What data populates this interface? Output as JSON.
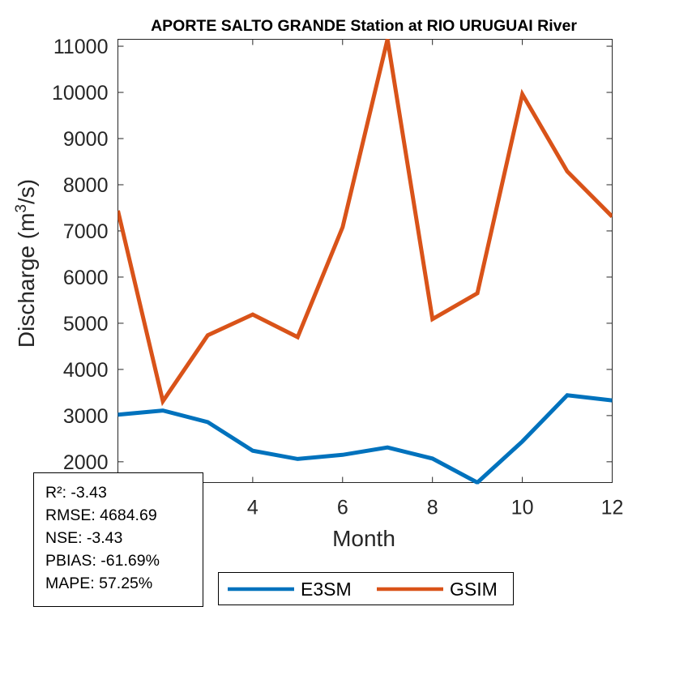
{
  "chart_data": {
    "type": "line",
    "title": "APORTE SALTO GRANDE  Station at  RIO URUGUAI  River",
    "xlabel": "Month",
    "ylabel_main": "Discharge (m",
    "ylabel_sup": "3",
    "ylabel_tail": "/s)",
    "x": [
      1,
      2,
      3,
      4,
      5,
      6,
      7,
      8,
      9,
      10,
      11,
      12
    ],
    "xlim": [
      1,
      12
    ],
    "ylim": [
      1550,
      11150
    ],
    "xticks": [
      4,
      6,
      8,
      10,
      12
    ],
    "yticks": [
      2000,
      3000,
      4000,
      5000,
      6000,
      7000,
      8000,
      9000,
      10000,
      11000
    ],
    "grid": false,
    "legend_position": "bottom",
    "series": [
      {
        "name": "E3SM",
        "color": "#0072BD",
        "values": [
          3020,
          3110,
          2860,
          2240,
          2060,
          2150,
          2310,
          2070,
          1550,
          2440,
          3440,
          3330
        ]
      },
      {
        "name": "GSIM",
        "color": "#D95319",
        "values": [
          7440,
          3310,
          4740,
          5190,
          4700,
          7080,
          11150,
          5090,
          5650,
          9960,
          8290,
          7310
        ]
      }
    ],
    "stats": [
      "R²: -3.43",
      "RMSE: 4684.69",
      "NSE: -3.43",
      "PBIAS: -61.69%",
      "MAPE: 57.25%"
    ]
  }
}
